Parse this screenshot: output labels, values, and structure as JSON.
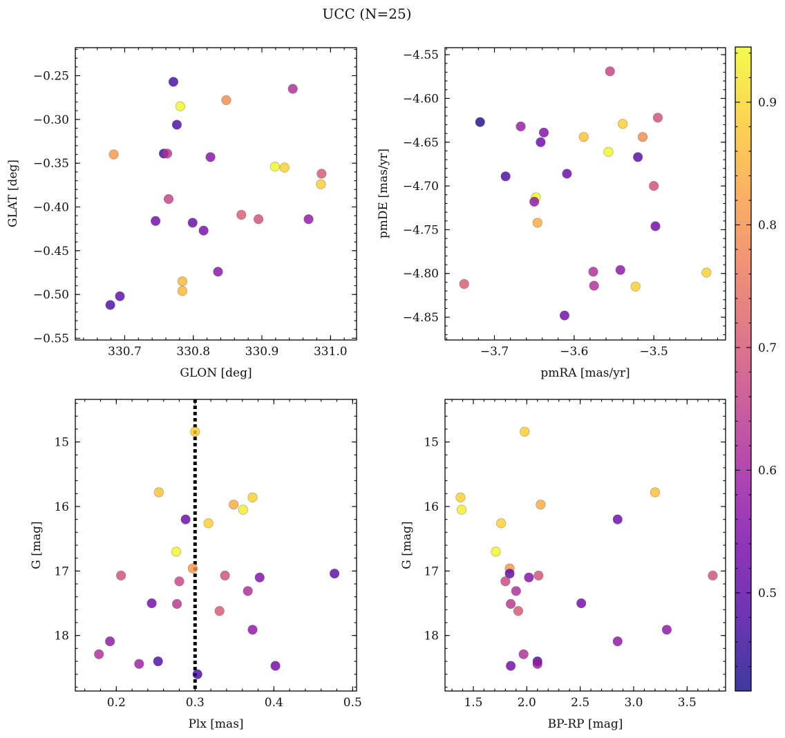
{
  "figure": {
    "title": "UCC (N=25)"
  },
  "colormap": {
    "name": "plasma",
    "stops": [
      "#0d0887",
      "#46039f",
      "#7201a8",
      "#9c179e",
      "#bd3786",
      "#d8576b",
      "#ed7953",
      "#fb9f3a",
      "#fdca26",
      "#f0f921"
    ],
    "range": [
      0.42,
      0.945
    ],
    "ticks": [
      0.5,
      0.6,
      0.7,
      0.8,
      0.9
    ],
    "tick_labels": [
      "0.5",
      "0.6",
      "0.7",
      "0.8",
      "0.9"
    ],
    "point_alpha": 0.8
  },
  "chart_data": [
    {
      "type": "scatter",
      "xlabel": "GLON [deg]",
      "ylabel": "GLAT [deg]",
      "xlim": [
        330.628,
        331.038
      ],
      "ylim": [
        -0.552,
        -0.218
      ],
      "xticks": [
        330.7,
        330.8,
        330.9,
        331.0
      ],
      "xtick_labels": [
        "330.7",
        "330.8",
        "330.9",
        "331.0"
      ],
      "yticks": [
        -0.55,
        -0.5,
        -0.45,
        -0.4,
        -0.35,
        -0.3,
        -0.25
      ],
      "ytick_labels": [
        "−0.55",
        "−0.50",
        "−0.45",
        "−0.40",
        "−0.35",
        "−0.30",
        "−0.25"
      ],
      "x": [
        330.771,
        330.781,
        330.848,
        330.945,
        330.776,
        330.684,
        330.757,
        330.762,
        330.825,
        330.919,
        330.933,
        330.987,
        330.986,
        330.764,
        330.745,
        330.799,
        330.815,
        330.87,
        330.895,
        330.968,
        330.836,
        330.784,
        330.784,
        330.693,
        330.679
      ],
      "y": [
        -0.257,
        -0.285,
        -0.278,
        -0.265,
        -0.306,
        -0.34,
        -0.339,
        -0.339,
        -0.343,
        -0.354,
        -0.355,
        -0.362,
        -0.374,
        -0.391,
        -0.416,
        -0.418,
        -0.427,
        -0.409,
        -0.414,
        -0.414,
        -0.474,
        -0.485,
        -0.496,
        -0.502,
        -0.512
      ],
      "c": [
        0.47,
        0.94,
        0.79,
        0.62,
        0.48,
        0.81,
        0.46,
        0.64,
        0.56,
        0.94,
        0.89,
        0.7,
        0.89,
        0.66,
        0.53,
        0.52,
        0.54,
        0.71,
        0.69,
        0.57,
        0.56,
        0.86,
        0.86,
        0.5,
        0.48
      ]
    },
    {
      "type": "scatter",
      "xlabel": "pmRA [mas/yr]",
      "ylabel": "pmDE [mas/yr]",
      "xlim": [
        -3.762,
        -3.41
      ],
      "ylim": [
        -4.876,
        -4.542
      ],
      "xticks": [
        -3.7,
        -3.6,
        -3.5
      ],
      "xtick_labels": [
        "−3.7",
        "−3.6",
        "−3.5"
      ],
      "yticks": [
        -4.85,
        -4.8,
        -4.75,
        -4.7,
        -4.65,
        -4.6,
        -4.55
      ],
      "ytick_labels": [
        "−4.85",
        "−4.80",
        "−4.75",
        "−4.70",
        "−4.65",
        "−4.60",
        "−4.55"
      ],
      "x": [
        -3.555,
        -3.718,
        -3.667,
        -3.638,
        -3.642,
        -3.588,
        -3.539,
        -3.557,
        -3.514,
        -3.52,
        -3.495,
        -3.609,
        -3.686,
        -3.648,
        -3.65,
        -3.646,
        -3.5,
        -3.498,
        -3.738,
        -3.576,
        -3.542,
        -3.575,
        -3.523,
        -3.434,
        -3.612
      ],
      "y": [
        -4.569,
        -4.627,
        -4.632,
        -4.639,
        -4.65,
        -4.644,
        -4.629,
        -4.661,
        -4.644,
        -4.667,
        -4.622,
        -4.686,
        -4.689,
        -4.713,
        -4.718,
        -4.742,
        -4.7,
        -4.746,
        -4.812,
        -4.798,
        -4.796,
        -4.814,
        -4.815,
        -4.799,
        -4.848
      ],
      "c": [
        0.66,
        0.43,
        0.58,
        0.55,
        0.52,
        0.87,
        0.89,
        0.94,
        0.79,
        0.49,
        0.69,
        0.52,
        0.48,
        0.94,
        0.57,
        0.84,
        0.69,
        0.53,
        0.71,
        0.62,
        0.57,
        0.62,
        0.89,
        0.89,
        0.53
      ]
    },
    {
      "type": "scatter",
      "xlabel": "Plx [mas]",
      "ylabel": "G [mag]",
      "invert_y": true,
      "xlim": [
        0.148,
        0.505
      ],
      "ylim": [
        18.86,
        14.34
      ],
      "xticks": [
        0.2,
        0.3,
        0.4,
        0.5
      ],
      "xtick_labels": [
        "0.2",
        "0.3",
        "0.4",
        "0.5"
      ],
      "yticks": [
        15,
        16,
        17,
        18
      ],
      "ytick_labels": [
        "15",
        "16",
        "17",
        "18"
      ],
      "vline": {
        "x": 0.3,
        "style": "dotted",
        "color": "#000000"
      },
      "x": [
        0.3,
        0.254,
        0.373,
        0.349,
        0.361,
        0.288,
        0.317,
        0.276,
        0.297,
        0.206,
        0.338,
        0.382,
        0.477,
        0.28,
        0.367,
        0.245,
        0.277,
        0.331,
        0.373,
        0.192,
        0.178,
        0.229,
        0.253,
        0.303,
        0.402
      ],
      "y": [
        14.84,
        15.78,
        15.86,
        15.97,
        16.05,
        16.2,
        16.26,
        16.7,
        16.96,
        17.07,
        17.07,
        17.1,
        17.04,
        17.16,
        17.31,
        17.5,
        17.51,
        17.62,
        17.91,
        18.09,
        18.29,
        18.44,
        18.4,
        18.6,
        18.47
      ],
      "c": [
        0.89,
        0.87,
        0.89,
        0.84,
        0.93,
        0.52,
        0.89,
        0.94,
        0.81,
        0.69,
        0.69,
        0.55,
        0.5,
        0.67,
        0.62,
        0.53,
        0.64,
        0.7,
        0.57,
        0.57,
        0.62,
        0.59,
        0.48,
        0.47,
        0.53
      ]
    },
    {
      "type": "scatter",
      "xlabel": "BP-RP [mag]",
      "ylabel": "G [mag]",
      "invert_y": true,
      "xlim": [
        1.235,
        3.86
      ],
      "ylim": [
        18.86,
        14.34
      ],
      "xticks": [
        1.5,
        2.0,
        2.5,
        3.0,
        3.5
      ],
      "xtick_labels": [
        "1.5",
        "2.0",
        "2.5",
        "3.0",
        "3.5"
      ],
      "yticks": [
        15,
        16,
        17,
        18
      ],
      "ytick_labels": [
        "15",
        "16",
        "17",
        "18"
      ],
      "x": [
        1.98,
        1.38,
        1.39,
        1.76,
        2.13,
        3.2,
        2.85,
        1.71,
        1.84,
        1.84,
        2.02,
        1.8,
        2.11,
        3.74,
        1.9,
        1.85,
        1.92,
        2.51,
        3.31,
        2.85,
        1.97,
        2.1,
        1.85,
        2.1
      ],
      "y": [
        14.84,
        15.86,
        16.05,
        16.26,
        15.97,
        15.78,
        16.2,
        16.7,
        16.96,
        17.04,
        17.1,
        17.16,
        17.07,
        17.07,
        17.31,
        17.51,
        17.62,
        17.5,
        17.91,
        18.09,
        18.29,
        18.4,
        18.47,
        18.44
      ],
      "c": [
        0.89,
        0.89,
        0.93,
        0.89,
        0.84,
        0.87,
        0.52,
        0.94,
        0.81,
        0.5,
        0.55,
        0.67,
        0.69,
        0.69,
        0.62,
        0.64,
        0.7,
        0.53,
        0.57,
        0.57,
        0.62,
        0.48,
        0.53,
        0.59
      ]
    }
  ]
}
